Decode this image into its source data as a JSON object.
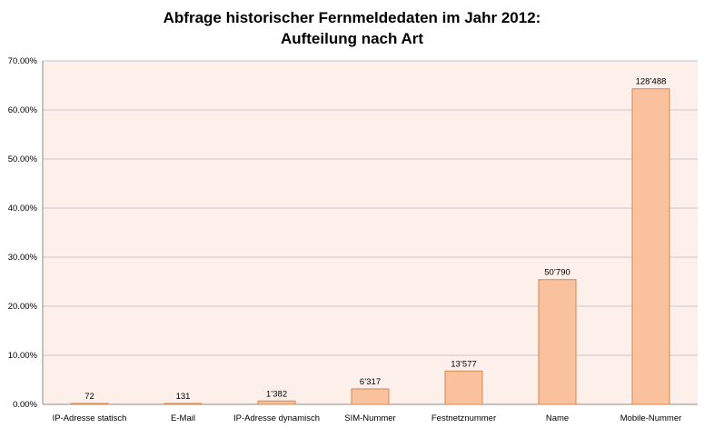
{
  "chart_data": {
    "type": "bar",
    "title_line1": "Abfrage historischer Fernmeldedaten im Jahr 2012:",
    "title_line2": "Aufteilung nach Art",
    "categories": [
      "IP-Adresse statisch",
      "E-Mail",
      "IP-Adresse dynamisch",
      "SIM-Nummer",
      "Festnetznummer",
      "Name",
      "Mobile-Nummer"
    ],
    "values": [
      0.04,
      0.07,
      0.69,
      3.16,
      6.8,
      25.42,
      64.31
    ],
    "data_labels": [
      "72",
      "131",
      "1’382",
      "6’317",
      "13’577",
      "50’790",
      "128’488"
    ],
    "y_ticks": [
      "0.00%",
      "10.00%",
      "20.00%",
      "30.00%",
      "40.00%",
      "50.00%",
      "60.00%",
      "70.00%"
    ],
    "ylim": [
      0,
      70
    ],
    "grid": true,
    "colors": {
      "plot_bg": "#fdf0ea",
      "bar_fill": "#f9c19e",
      "bar_stroke": "#d4894f",
      "grid": "#c9c9c9"
    }
  }
}
